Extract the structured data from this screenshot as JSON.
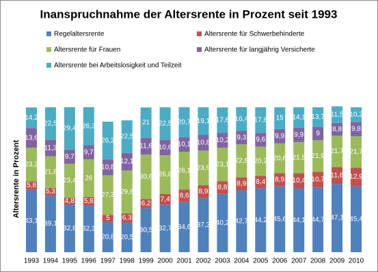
{
  "chart_data": {
    "type": "stacked_bar",
    "title": "Inanspruchnahme der Altersrente in Prozent seit 1993",
    "y_label": "Altersrente in Prozent",
    "categories": [
      "1993",
      "1994",
      "1995",
      "1996",
      "1997",
      "1998",
      "1999",
      "2000",
      "2001",
      "2002",
      "2003",
      "2004",
      "2005",
      "2006",
      "2007",
      "2008",
      "2009",
      "2010"
    ],
    "ylim": [
      0,
      100
    ],
    "series": [
      {
        "name": "Regelaltersrente",
        "color": "#4f81bd",
        "values": [
          43.1,
          39.1,
          32.8,
          32.3,
          20.8,
          20.5,
          30.5,
          32.7,
          34.6,
          37.3,
          40.2,
          42.7,
          44.2,
          45.6,
          44.1,
          44.7,
          47.1,
          45.4
        ],
        "value_labels": [
          "43,1",
          "39,1",
          "32,8",
          "32,3",
          "20,8",
          "20,5",
          "30,5",
          "32,7",
          "34,6",
          "37,3",
          "40,2",
          "42,7",
          "44,2",
          "45,6",
          "44,1",
          "44,7",
          "47,1",
          "45,4"
        ]
      },
      {
        "name": "Altersrente für Schwerbehinderte",
        "color": "#c0504d",
        "values": [
          5.8,
          5.3,
          4.8,
          5.8,
          5,
          6.3,
          6.2,
          7.4,
          8.6,
          8.9,
          8.8,
          8.9,
          8.4,
          8.9,
          10.4,
          10.7,
          11.6,
          12.9
        ],
        "value_labels": [
          "5,8",
          "5,3",
          "4,8",
          "5,8",
          "5",
          "6,3",
          "6,2",
          "7,4",
          "8,6",
          "8,9",
          "8,8",
          "8,9",
          "8,4",
          "8,9",
          "10,4",
          "10,7",
          "11,6",
          "12,9"
        ]
      },
      {
        "name": "Altersrente für Frauen",
        "color": "#9bbb59",
        "values": [
          23.2,
          21.8,
          23.4,
          26,
          27.3,
          29.6,
          30.6,
          26.8,
          26.1,
          23.9,
          23.1,
          22.8,
          20.2,
          20.6,
          21.5,
          21.9,
          21.7,
          21.7
        ],
        "value_labels": [
          "23,2",
          "21,8",
          "23,4",
          "26",
          "27,3",
          "29,6",
          "30,6",
          "26,8",
          "26,1",
          "23,9",
          "23,1",
          "22,8",
          "20,2",
          "20,6",
          "21,5",
          "21,9",
          "21,7",
          "21,7"
        ]
      },
      {
        "name": "Altersrente für langjährig Versicherte",
        "color": "#8064a2",
        "values": [
          13.6,
          11.3,
          9.7,
          9.7,
          10.8,
          12.1,
          11.6,
          10.6,
          10.1,
          10.8,
          10.2,
          9.3,
          9.6,
          9.9,
          9.9,
          9,
          8.8,
          9.8
        ],
        "value_labels": [
          "13,6",
          "11,3",
          "9,7",
          "9,7",
          "10,8",
          "12,1",
          "11,6",
          "10,6",
          "10,1",
          "10,8",
          "10,2",
          "9,3",
          "9,6",
          "9,9",
          "9,9",
          "9",
          "8,8",
          "9,8"
        ]
      },
      {
        "name": "Altersrente bei Arbeitslosigkeit und Teilzeit",
        "color": "#4bacc6",
        "values": [
          14.2,
          22.5,
          29.4,
          26.3,
          26.2,
          22.5,
          21,
          22.5,
          20.7,
          19.1,
          17.6,
          16.4,
          17.6,
          15,
          14.1,
          13.7,
          11.5,
          10.2
        ],
        "value_labels": [
          "14,2",
          "22,5",
          "29,4",
          "26,3",
          "26,2",
          "22,5",
          "21",
          "22,5",
          "20,7",
          "19,1",
          "17,6",
          "16,4",
          "17,6",
          "15",
          "14,1",
          "13,7",
          "11,5",
          "10,2"
        ]
      }
    ]
  }
}
